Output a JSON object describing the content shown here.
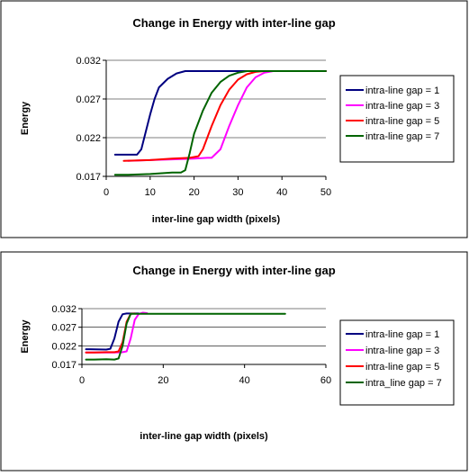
{
  "chart_data": [
    {
      "type": "line",
      "title": "Change in Energy with inter-line gap",
      "xlabel": "inter-line gap width (pixels)",
      "ylabel": "Energy",
      "xlim": [
        0,
        50
      ],
      "ylim": [
        0.017,
        0.032
      ],
      "x_ticks": [
        0,
        10,
        20,
        30,
        40,
        50
      ],
      "y_ticks": [
        0.017,
        0.022,
        0.027,
        0.032
      ],
      "x_tick_labels": [
        "0",
        "10",
        "20",
        "30",
        "40",
        "50"
      ],
      "y_tick_labels": [
        "0.017",
        "0.022",
        "0.027",
        "0.032"
      ],
      "grid": "horizontal",
      "legend": "right",
      "series": [
        {
          "name": "intra-line gap = 1",
          "color": "#000080",
          "x": [
            2,
            3,
            7,
            8,
            10,
            11,
            12,
            14,
            16,
            18,
            20,
            25,
            30,
            35,
            40,
            45,
            50
          ],
          "y": [
            0.0198,
            0.0198,
            0.0198,
            0.0205,
            0.025,
            0.027,
            0.0285,
            0.0296,
            0.0303,
            0.0306,
            0.0306,
            0.0306,
            0.0306,
            0.0306,
            0.0306,
            0.0306,
            0.0306
          ]
        },
        {
          "name": "intra-line gap = 3",
          "color": "#ff00ff",
          "x": [
            5,
            10,
            15,
            20,
            23,
            24,
            26,
            28,
            30,
            32,
            34,
            36,
            38,
            40,
            45,
            50
          ],
          "y": [
            0.019,
            0.0191,
            0.0192,
            0.0193,
            0.0194,
            0.0194,
            0.0205,
            0.0235,
            0.0262,
            0.0285,
            0.0298,
            0.0304,
            0.0306,
            0.0306,
            0.0306,
            0.0306
          ]
        },
        {
          "name": "intra-line gap = 5",
          "color": "#ff0000",
          "x": [
            4,
            10,
            15,
            19,
            21,
            22,
            24,
            26,
            28,
            30,
            32,
            34,
            36,
            40,
            45,
            50
          ],
          "y": [
            0.019,
            0.0191,
            0.0193,
            0.0194,
            0.0196,
            0.0205,
            0.0235,
            0.0262,
            0.0282,
            0.0295,
            0.0302,
            0.0305,
            0.0306,
            0.0306,
            0.0306,
            0.0306
          ]
        },
        {
          "name": "intra-line gap = 7",
          "color": "#006400",
          "x": [
            2,
            5,
            10,
            15,
            17,
            18,
            19,
            20,
            22,
            24,
            26,
            28,
            30,
            32,
            34,
            40,
            45,
            50
          ],
          "y": [
            0.0172,
            0.0172,
            0.0173,
            0.0175,
            0.0175,
            0.0178,
            0.02,
            0.0225,
            0.0255,
            0.0278,
            0.0292,
            0.03,
            0.0304,
            0.0306,
            0.0306,
            0.0306,
            0.0306,
            0.0306
          ]
        }
      ]
    },
    {
      "type": "line",
      "title": "Change in Energy with inter-line gap",
      "xlabel": "inter-line gap width (pixels)",
      "ylabel": "Energy",
      "xlim": [
        0,
        60
      ],
      "ylim": [
        0.017,
        0.032
      ],
      "x_ticks": [
        0,
        20,
        40,
        60
      ],
      "y_ticks": [
        0.017,
        0.022,
        0.027,
        0.032
      ],
      "x_tick_labels": [
        "0",
        "20",
        "40",
        "60"
      ],
      "y_tick_labels": [
        "0.017",
        "0.022",
        "0.027",
        "0.032"
      ],
      "grid": "horizontal",
      "legend": "right",
      "series": [
        {
          "name": "intra-line gap = 1",
          "color": "#000080",
          "x": [
            1,
            2,
            6,
            7,
            8,
            9,
            10,
            11,
            12,
            14
          ],
          "y": [
            0.0211,
            0.0211,
            0.021,
            0.0212,
            0.024,
            0.0285,
            0.0305,
            0.0307,
            0.0307,
            0.0307
          ]
        },
        {
          "name": "intra-line gap = 3",
          "color": "#ff00ff",
          "x": [
            1,
            5,
            8,
            10,
            11,
            12,
            13,
            14,
            15,
            16
          ],
          "y": [
            0.0202,
            0.0202,
            0.0202,
            0.0203,
            0.0205,
            0.024,
            0.029,
            0.0306,
            0.0309,
            0.0308
          ]
        },
        {
          "name": "intra-line gap = 5",
          "color": "#ff0000",
          "x": [
            1,
            3,
            6,
            8,
            9,
            10,
            11,
            12,
            13
          ],
          "y": [
            0.0202,
            0.0202,
            0.0203,
            0.0203,
            0.0205,
            0.023,
            0.0285,
            0.0306,
            0.0307
          ]
        },
        {
          "name": "intra_line gap = 7",
          "color": "#006400",
          "x": [
            1,
            3,
            6,
            8,
            9,
            10,
            11,
            12,
            15,
            20,
            30,
            40,
            50
          ],
          "y": [
            0.0183,
            0.0183,
            0.0184,
            0.0183,
            0.0186,
            0.022,
            0.028,
            0.0306,
            0.0306,
            0.0306,
            0.0306,
            0.0306,
            0.0306
          ]
        }
      ]
    }
  ]
}
